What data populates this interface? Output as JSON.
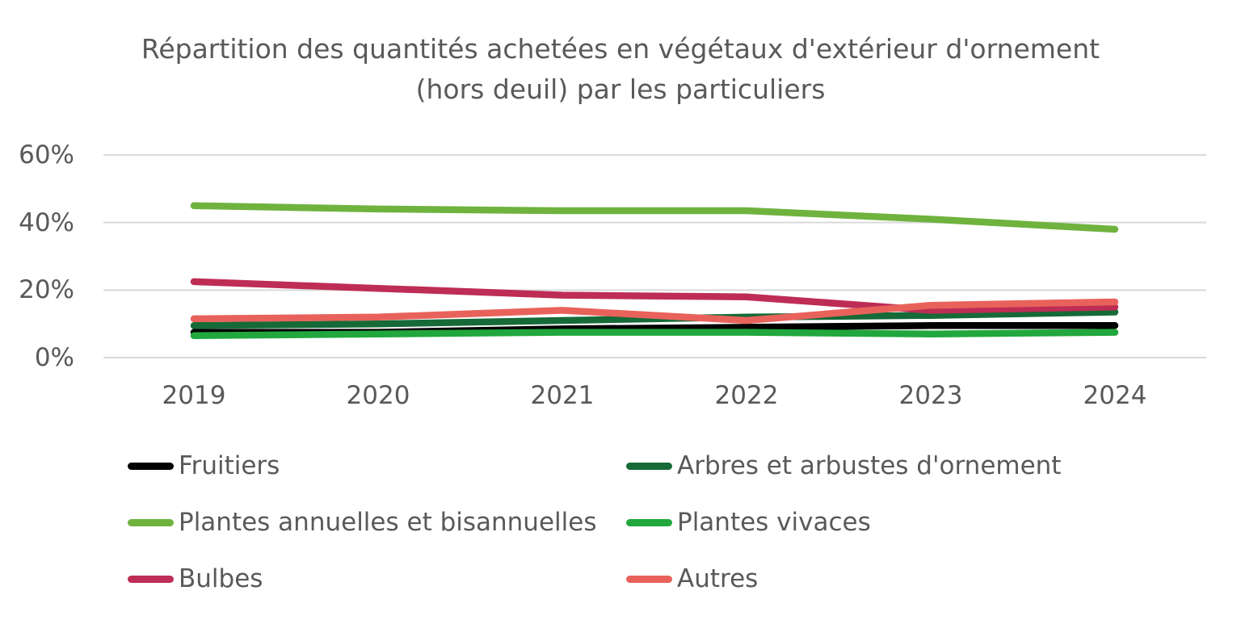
{
  "chart_data": {
    "type": "line",
    "title": "Répartition des quantités achetées en végétaux d'extérieur d'ornement (hors deuil) par les particuliers",
    "categories": [
      "2019",
      "2020",
      "2021",
      "2022",
      "2023",
      "2024"
    ],
    "series": [
      {
        "name": "Fruitiers",
        "color": "#000000",
        "values": [
          7.5,
          7.5,
          8.5,
          9,
          9.5,
          9.5
        ]
      },
      {
        "name": "Arbres et arbustes d'ornement",
        "color": "#166A37",
        "values": [
          9.5,
          10,
          11,
          12,
          12.5,
          13.5
        ]
      },
      {
        "name": "Plantes annuelles et bisannuelles",
        "color": "#6FB33E",
        "values": [
          45,
          44,
          43.5,
          43.5,
          41,
          38
        ]
      },
      {
        "name": "Plantes vivaces",
        "color": "#21A73D",
        "values": [
          6.5,
          7,
          7.5,
          7.5,
          7,
          7.5
        ]
      },
      {
        "name": "Bulbes",
        "color": "#BE2D55",
        "values": [
          22.5,
          20.5,
          18.5,
          18,
          14,
          15
        ]
      },
      {
        "name": "Autres",
        "color": "#E8625B",
        "values": [
          11.5,
          12,
          14,
          11,
          15.5,
          16.5
        ]
      }
    ],
    "yticks": [
      {
        "label": "60%",
        "value": 60
      },
      {
        "label": "40%",
        "value": 40
      },
      {
        "label": "20%",
        "value": 20
      },
      {
        "label": "0%",
        "value": 0
      }
    ],
    "ylim": [
      0,
      60
    ],
    "xlabel": "",
    "ylabel": "",
    "grid": true,
    "gridline_color": "#D9D9D9",
    "text_color": "#595959",
    "legend_position": "bottom-two-columns",
    "unit": "percent"
  }
}
